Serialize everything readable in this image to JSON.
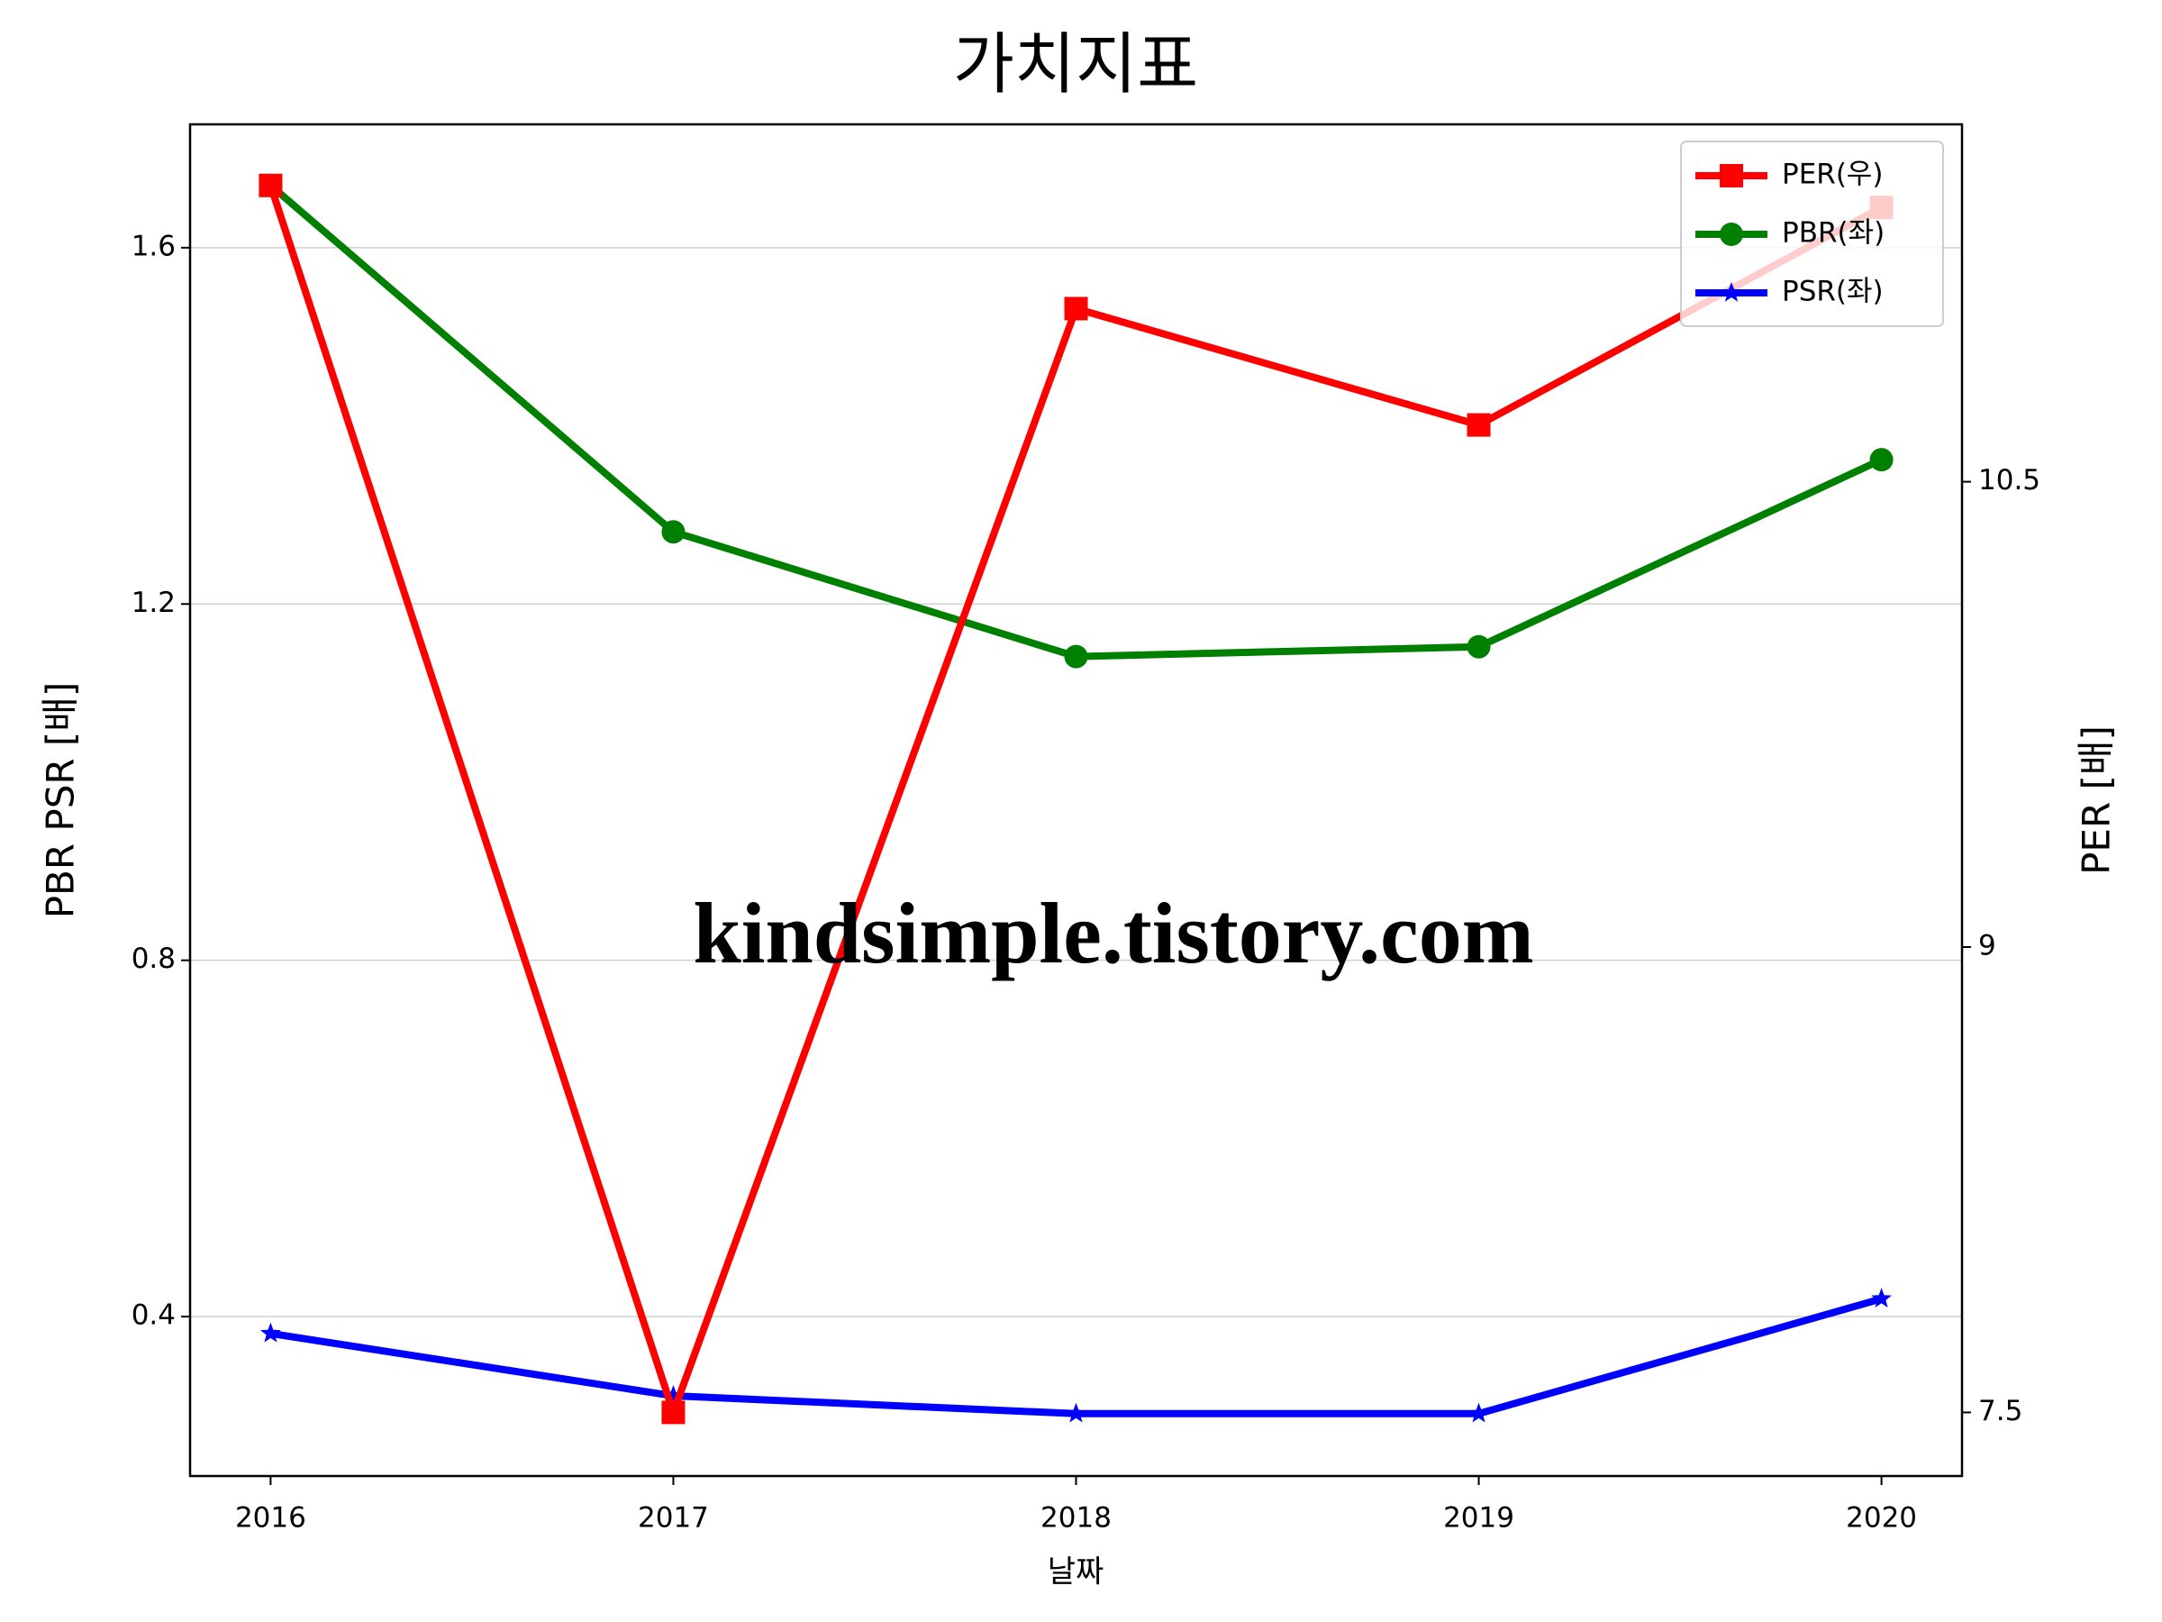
{
  "chart_data": {
    "type": "line",
    "title": "가치지표",
    "x": [
      2016,
      2017,
      2018,
      2019,
      2020
    ],
    "xlim": [
      2015.8,
      2020.2
    ],
    "xticks": [
      2016,
      2017,
      2018,
      2019,
      2020
    ],
    "x_label": "날짜",
    "y_label": "PBR PSR [배]",
    "y_label_color": "#008000",
    "y2_label": "PER [배]",
    "y2_label_color": "#ff0000",
    "ylim": [
      0.221,
      1.7385
    ],
    "yticks": [
      0.4,
      0.8,
      1.2,
      1.6
    ],
    "y2lim": [
      7.295,
      11.652
    ],
    "y2ticks": [
      7.5,
      9.0,
      10.5
    ],
    "grid": true,
    "legend": "upper right",
    "annotation": "kindsimple.tistory.com",
    "series": [
      {
        "name": "PER(우)",
        "color": "#ff0000",
        "marker": "square",
        "axis": "y2",
        "values": [
          11.455,
          7.5,
          11.058,
          10.683,
          11.384
        ]
      },
      {
        "name": "PBR(좌)",
        "color": "#008000",
        "marker": "circle",
        "values": [
          1.67,
          1.281,
          1.141,
          1.152,
          1.362
        ]
      },
      {
        "name": "PSR(좌)",
        "color": "#0000ff",
        "marker": "star",
        "values": [
          0.381,
          0.311,
          0.291,
          0.291,
          0.42
        ]
      }
    ]
  }
}
